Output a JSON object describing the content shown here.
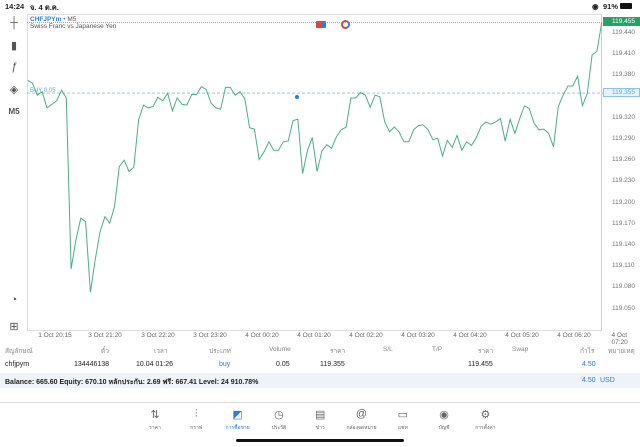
{
  "status_bar": {
    "time": "14:24",
    "date": "จ. 4 ต.ค.",
    "battery": "91%"
  },
  "toolbar": {
    "timeframe": "M5"
  },
  "chart": {
    "symbol": "CHFJPYm",
    "timeframe": "M5",
    "separator": "•",
    "description": "Swiss Franc vs Japanese Yen",
    "position_label": "BUY 0.05",
    "current_price": "119.455",
    "position_price": "119.355",
    "colors": {
      "line": "#4caf82",
      "buy_line": "#5aa7e6",
      "price_tag": "#26a269"
    }
  },
  "chart_data": {
    "type": "line",
    "ylim": [
      119.03,
      119.46
    ],
    "y_ticks": [
      "119.440",
      "119.410",
      "119.380",
      "119.320",
      "119.290",
      "119.260",
      "119.230",
      "119.200",
      "119.170",
      "119.140",
      "119.110",
      "119.080",
      "119.050"
    ],
    "x_ticks": [
      "1 Oct 20:15",
      "3 Oct 21:20",
      "3 Oct 22:20",
      "3 Oct 23:20",
      "4 Oct 00:20",
      "4 Oct 01:20",
      "4 Oct 02:20",
      "4 Oct 03:20",
      "4 Oct 04:20",
      "4 Oct 05:20",
      "4 Oct 06:20",
      "4 Oct 07:20"
    ],
    "values": [
      119.373,
      119.369,
      119.352,
      119.357,
      119.334,
      119.339,
      119.344,
      119.359,
      119.348,
      119.106,
      119.147,
      119.178,
      119.173,
      119.073,
      119.119,
      119.159,
      119.18,
      119.171,
      119.194,
      119.251,
      119.26,
      119.244,
      119.25,
      119.317,
      119.338,
      119.334,
      119.336,
      119.349,
      119.344,
      119.355,
      119.33,
      119.348,
      119.339,
      119.338,
      119.353,
      119.353,
      119.364,
      119.36,
      119.341,
      119.334,
      119.332,
      119.363,
      119.363,
      119.352,
      119.357,
      119.347,
      119.306,
      119.304,
      119.261,
      119.272,
      119.286,
      119.274,
      119.274,
      119.286,
      119.287,
      119.316,
      119.318,
      119.241,
      119.274,
      119.292,
      119.244,
      119.273,
      119.282,
      119.277,
      119.293,
      119.303,
      119.307,
      119.348,
      119.348,
      119.356,
      119.352,
      119.335,
      119.352,
      119.35,
      119.315,
      119.3,
      119.307,
      119.3,
      119.286,
      119.286,
      119.303,
      119.309,
      119.31,
      119.303,
      119.289,
      119.291,
      119.266,
      119.288,
      119.278,
      119.295,
      119.274,
      119.286,
      119.281,
      119.292,
      119.308,
      119.314,
      119.311,
      119.314,
      119.319,
      119.287,
      119.318,
      119.298,
      119.319,
      119.337,
      119.333,
      119.312,
      119.303,
      119.304,
      119.298,
      119.279,
      119.336,
      119.352,
      119.365,
      119.365,
      119.379,
      119.337,
      119.354,
      119.409,
      119.414,
      119.455
    ]
  },
  "positions": {
    "headers": [
      "สัญลักษณ์",
      "ตั๋ว",
      "เวลา",
      "ประเภท",
      "Volume",
      "ราคา",
      "S/L",
      "T/P",
      "ราคา",
      "Swap",
      "กำไร",
      "หมายเหตุ"
    ],
    "rows": [
      {
        "symbol": "chfjpym",
        "ticket": "134446138",
        "time": "10.04 01:26",
        "type": "buy",
        "volume": "0.05",
        "open_price": "119.355",
        "sl": "",
        "tp": "",
        "price": "119.455",
        "swap": "",
        "profit": "4.50",
        "comment": ""
      }
    ],
    "summary": "Balance: 665.60 Equity: 670.10 หลักประกัน: 2.69 ฟรี: 667.41 Level: 24 910.78%",
    "total_profit": "4.50",
    "currency": "USD"
  },
  "nav": [
    {
      "label": "ราคา",
      "icon": "quotes-icon"
    },
    {
      "label": "กราฟ",
      "icon": "chart-icon"
    },
    {
      "label": "การซื้อขาย",
      "icon": "trade-icon",
      "active": true
    },
    {
      "label": "ประวัติ",
      "icon": "history-icon"
    },
    {
      "label": "ข่าว",
      "icon": "news-icon"
    },
    {
      "label": "กล่องจดหมาย",
      "icon": "mail-icon"
    },
    {
      "label": "แชท",
      "icon": "chat-icon"
    },
    {
      "label": "บัญชี",
      "icon": "account-icon"
    },
    {
      "label": "การตั้งค่า",
      "icon": "settings-icon"
    }
  ]
}
